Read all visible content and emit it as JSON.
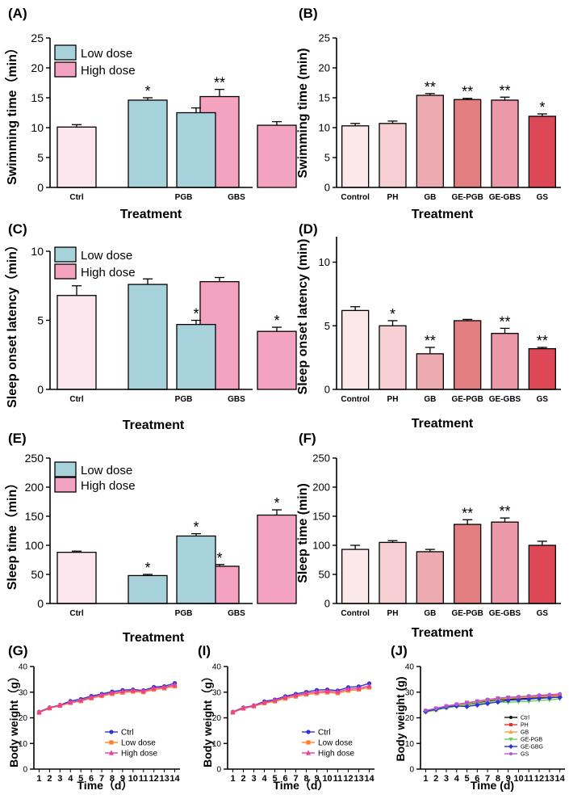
{
  "colors": {
    "ctrl": "#fbe6ee",
    "low": "#a7d2dc",
    "high": "#f3a2bf",
    "control": "#fbe8ea",
    "ph": "#f5cfd2",
    "gb": "#ebabb0",
    "gepgb": "#e27e80",
    "gegbs": "#eb98a8",
    "gs": "#dc4856",
    "line_ctrl": "#2f33d8",
    "line_low": "#ff7f2a",
    "line_high": "#ea3f9a",
    "j_ctrl": "#111111",
    "j_ph": "#e8302a",
    "j_gb": "#f2a33b",
    "j_gepgb": "#6ccf55",
    "j_gegbg": "#2f33d8",
    "j_gs": "#b35ad0"
  },
  "chart_data": [
    {
      "id": "A",
      "type": "bar",
      "panel_label": "(A)",
      "ylabel": "Swimming time（min）",
      "xlabel": "Treatment",
      "ylim": [
        0,
        25
      ],
      "yticks": [
        0,
        5,
        10,
        15,
        20,
        25
      ],
      "groups": [
        {
          "label": "Ctrl",
          "bars": [
            {
              "value": 10.1,
              "err": 0.4,
              "color": "ctrl",
              "sig": ""
            }
          ]
        },
        {
          "label": "PGB",
          "bars": [
            {
              "value": 14.6,
              "err": 0.4,
              "color": "low",
              "sig": "*"
            },
            {
              "value": 15.2,
              "err": 1.2,
              "color": "high",
              "sig": "**"
            }
          ]
        },
        {
          "label": "GBS",
          "bars": [
            {
              "value": 12.5,
              "err": 0.8,
              "color": "low",
              "sig": ""
            },
            {
              "value": 10.4,
              "err": 0.6,
              "color": "high",
              "sig": ""
            }
          ]
        }
      ],
      "legend": [
        {
          "label": "Low dose",
          "color": "low"
        },
        {
          "label": "High dose",
          "color": "high"
        }
      ]
    },
    {
      "id": "B",
      "type": "bar",
      "panel_label": "(B)",
      "ylabel": "Swimming time (min)",
      "xlabel": "Treatment",
      "ylim": [
        0,
        25
      ],
      "yticks": [
        0,
        5,
        10,
        15,
        20,
        25
      ],
      "groups": [
        {
          "label": "Control",
          "bars": [
            {
              "value": 10.3,
              "err": 0.4,
              "color": "control",
              "sig": ""
            }
          ]
        },
        {
          "label": "PH",
          "bars": [
            {
              "value": 10.7,
              "err": 0.4,
              "color": "ph",
              "sig": ""
            }
          ]
        },
        {
          "label": "GB",
          "bars": [
            {
              "value": 15.4,
              "err": 0.3,
              "color": "gb",
              "sig": "**"
            }
          ]
        },
        {
          "label": "GE-PGB",
          "bars": [
            {
              "value": 14.7,
              "err": 0.2,
              "color": "gepgb",
              "sig": "**"
            }
          ]
        },
        {
          "label": "GE-GBS",
          "bars": [
            {
              "value": 14.6,
              "err": 0.5,
              "color": "gegbs",
              "sig": "**"
            }
          ]
        },
        {
          "label": "GS",
          "bars": [
            {
              "value": 11.9,
              "err": 0.4,
              "color": "gs",
              "sig": "*"
            }
          ]
        }
      ]
    },
    {
      "id": "C",
      "type": "bar",
      "panel_label": "(C)",
      "ylabel": "Sleep onset latency（min）",
      "xlabel": "Treatment",
      "ylim": [
        0,
        10
      ],
      "yticks": [
        0,
        5,
        10
      ],
      "groups": [
        {
          "label": "Ctrl",
          "bars": [
            {
              "value": 6.8,
              "err": 0.7,
              "color": "ctrl",
              "sig": ""
            }
          ]
        },
        {
          "label": "PGB",
          "bars": [
            {
              "value": 7.6,
              "err": 0.4,
              "color": "low",
              "sig": ""
            },
            {
              "value": 7.8,
              "err": 0.3,
              "color": "high",
              "sig": ""
            }
          ]
        },
        {
          "label": "GBS",
          "bars": [
            {
              "value": 4.7,
              "err": 0.3,
              "color": "low",
              "sig": "*"
            },
            {
              "value": 4.2,
              "err": 0.3,
              "color": "high",
              "sig": "*"
            }
          ]
        }
      ],
      "legend": [
        {
          "label": "Low dose",
          "color": "low"
        },
        {
          "label": "High dose",
          "color": "high"
        }
      ]
    },
    {
      "id": "D",
      "type": "bar",
      "panel_label": "(D)",
      "ylabel": "Sleep onset latency (min)",
      "xlabel": "Treatment",
      "ylim": [
        0,
        12
      ],
      "yticks": [
        0,
        5,
        10
      ],
      "groups": [
        {
          "label": "Control",
          "bars": [
            {
              "value": 6.2,
              "err": 0.3,
              "color": "control",
              "sig": ""
            }
          ]
        },
        {
          "label": "PH",
          "bars": [
            {
              "value": 5.0,
              "err": 0.4,
              "color": "ph",
              "sig": "*"
            }
          ]
        },
        {
          "label": "GB",
          "bars": [
            {
              "value": 2.8,
              "err": 0.5,
              "color": "gb",
              "sig": "**"
            }
          ]
        },
        {
          "label": "GE-PGB",
          "bars": [
            {
              "value": 5.4,
              "err": 0.1,
              "color": "gepgb",
              "sig": ""
            }
          ]
        },
        {
          "label": "GE-GBS",
          "bars": [
            {
              "value": 4.4,
              "err": 0.4,
              "color": "gegbs",
              "sig": "**"
            }
          ]
        },
        {
          "label": "GS",
          "bars": [
            {
              "value": 3.2,
              "err": 0.1,
              "color": "gs",
              "sig": "**"
            }
          ]
        }
      ]
    },
    {
      "id": "E",
      "type": "bar",
      "panel_label": "(E)",
      "ylabel": "Sleep time（min）",
      "xlabel": "Treatment",
      "ylim": [
        0,
        250
      ],
      "yticks": [
        0,
        50,
        100,
        150,
        200,
        250
      ],
      "groups": [
        {
          "label": "Ctrl",
          "bars": [
            {
              "value": 88,
              "err": 2,
              "color": "ctrl",
              "sig": ""
            }
          ]
        },
        {
          "label": "PGB",
          "bars": [
            {
              "value": 48,
              "err": 2,
              "color": "low",
              "sig": "*"
            },
            {
              "value": 64,
              "err": 3,
              "color": "high",
              "sig": "*"
            }
          ]
        },
        {
          "label": "GBS",
          "bars": [
            {
              "value": 116,
              "err": 4,
              "color": "low",
              "sig": "*"
            },
            {
              "value": 152,
              "err": 9,
              "color": "high",
              "sig": "*"
            }
          ]
        }
      ],
      "legend": [
        {
          "label": "Low dose",
          "color": "low"
        },
        {
          "label": "High dose",
          "color": "high"
        }
      ]
    },
    {
      "id": "F",
      "type": "bar",
      "panel_label": "(F)",
      "ylabel": "Sleep time (min)",
      "xlabel": "Treatment",
      "ylim": [
        0,
        250
      ],
      "yticks": [
        0,
        50,
        100,
        150,
        200,
        250
      ],
      "groups": [
        {
          "label": "Control",
          "bars": [
            {
              "value": 93,
              "err": 7,
              "color": "control",
              "sig": ""
            }
          ]
        },
        {
          "label": "PH",
          "bars": [
            {
              "value": 105,
              "err": 3,
              "color": "ph",
              "sig": ""
            }
          ]
        },
        {
          "label": "GB",
          "bars": [
            {
              "value": 89,
              "err": 4,
              "color": "gb",
              "sig": ""
            }
          ]
        },
        {
          "label": "GE-PGB",
          "bars": [
            {
              "value": 136,
              "err": 8,
              "color": "gepgb",
              "sig": "**"
            }
          ]
        },
        {
          "label": "GE-GBS",
          "bars": [
            {
              "value": 140,
              "err": 7,
              "color": "gegbs",
              "sig": "**"
            }
          ]
        },
        {
          "label": "GS",
          "bars": [
            {
              "value": 100,
              "err": 7,
              "color": "gs",
              "sig": ""
            }
          ]
        }
      ]
    },
    {
      "id": "G",
      "type": "line",
      "panel_label": "(G)",
      "ylabel": "Body weight（g）",
      "xlabel": "Time（d）",
      "x": [
        1,
        2,
        3,
        4,
        5,
        6,
        7,
        8,
        9,
        10,
        11,
        12,
        13,
        14
      ],
      "xlim": [
        0.5,
        14.5
      ],
      "ylim": [
        0,
        40
      ],
      "yticks": [
        0,
        10,
        20,
        30,
        40
      ],
      "series": [
        {
          "name": "Ctrl",
          "color": "line_ctrl",
          "marker": "circle",
          "values": [
            22.3,
            24.0,
            25.0,
            26.5,
            27.3,
            28.5,
            29.3,
            30.2,
            30.8,
            31.0,
            30.7,
            32.0,
            32.3,
            33.5
          ]
        },
        {
          "name": "Low dose",
          "color": "line_low",
          "marker": "square",
          "values": [
            22.0,
            23.7,
            24.7,
            25.8,
            26.5,
            27.6,
            28.5,
            29.3,
            29.8,
            30.2,
            30.0,
            31.0,
            31.5,
            32.3
          ]
        },
        {
          "name": "High dose",
          "color": "line_high",
          "marker": "triangle",
          "values": [
            22.2,
            23.9,
            24.9,
            26.0,
            26.8,
            28.0,
            28.9,
            29.7,
            30.3,
            30.6,
            30.4,
            31.5,
            31.9,
            32.8
          ]
        }
      ]
    },
    {
      "id": "I",
      "type": "line",
      "panel_label": "(I)",
      "ylabel": "Body weight（g）",
      "xlabel": "Time（d）",
      "x": [
        1,
        2,
        3,
        4,
        5,
        6,
        7,
        8,
        9,
        10,
        11,
        12,
        13,
        14
      ],
      "xlim": [
        0.5,
        14.5
      ],
      "ylim": [
        0,
        40
      ],
      "yticks": [
        0,
        10,
        20,
        30,
        40
      ],
      "series": [
        {
          "name": "Ctrl",
          "color": "line_ctrl",
          "marker": "circle",
          "values": [
            22.3,
            24.0,
            24.8,
            26.4,
            27.1,
            28.4,
            29.3,
            30.1,
            30.8,
            31.0,
            30.6,
            31.9,
            32.2,
            33.4
          ]
        },
        {
          "name": "Low dose",
          "color": "line_low",
          "marker": "square",
          "values": [
            22.1,
            23.6,
            24.5,
            25.7,
            26.4,
            27.5,
            28.3,
            29.1,
            29.6,
            29.9,
            29.6,
            30.6,
            31.0,
            31.8
          ]
        },
        {
          "name": "High dose",
          "color": "line_high",
          "marker": "triangle",
          "values": [
            22.2,
            23.8,
            24.7,
            26.0,
            26.8,
            28.0,
            28.8,
            29.6,
            30.1,
            30.4,
            30.1,
            31.2,
            31.5,
            32.4
          ]
        }
      ]
    },
    {
      "id": "J",
      "type": "line",
      "panel_label": "(J)",
      "ylabel": "Body weight (g)",
      "xlabel": "Time (d)",
      "x": [
        1,
        2,
        3,
        4,
        5,
        6,
        7,
        8,
        9,
        10,
        11,
        12,
        13,
        14
      ],
      "xlim": [
        0.5,
        14.5
      ],
      "ylim": [
        0,
        40
      ],
      "yticks": [
        0,
        10,
        20,
        30,
        40
      ],
      "series": [
        {
          "name": "Ctrl",
          "color": "j_ctrl",
          "marker": "circle",
          "values": [
            22.8,
            23.4,
            24.2,
            24.8,
            25.4,
            26.0,
            26.5,
            27.0,
            27.2,
            27.5,
            27.6,
            27.8,
            27.9,
            28.1
          ]
        },
        {
          "name": "PH",
          "color": "j_ph",
          "marker": "square",
          "values": [
            22.6,
            23.6,
            24.5,
            25.2,
            25.9,
            26.4,
            27.0,
            27.6,
            27.9,
            28.0,
            28.3,
            28.5,
            28.6,
            28.8
          ]
        },
        {
          "name": "GB",
          "color": "j_gb",
          "marker": "triangle",
          "values": [
            22.4,
            23.2,
            24.0,
            24.8,
            25.5,
            26.2,
            26.8,
            27.3,
            27.6,
            27.8,
            28.0,
            28.2,
            28.3,
            28.6
          ]
        },
        {
          "name": "GE-PGB",
          "color": "j_gepgb",
          "marker": "triangle-down",
          "values": [
            22.2,
            23.0,
            23.8,
            24.5,
            25.0,
            25.5,
            26.0,
            26.2,
            26.0,
            26.3,
            26.4,
            26.8,
            27.0,
            27.4
          ]
        },
        {
          "name": "GE-GBG",
          "color": "j_gegbg",
          "marker": "diamond",
          "values": [
            22.5,
            23.3,
            24.2,
            24.6,
            24.4,
            25.0,
            25.6,
            26.2,
            26.8,
            27.0,
            27.3,
            27.6,
            27.8,
            28.0
          ]
        },
        {
          "name": "GS",
          "color": "j_gs",
          "marker": "circle",
          "values": [
            22.9,
            23.7,
            24.6,
            25.3,
            25.8,
            26.5,
            27.1,
            27.6,
            28.0,
            28.2,
            28.5,
            28.8,
            29.0,
            29.3
          ]
        }
      ]
    }
  ]
}
